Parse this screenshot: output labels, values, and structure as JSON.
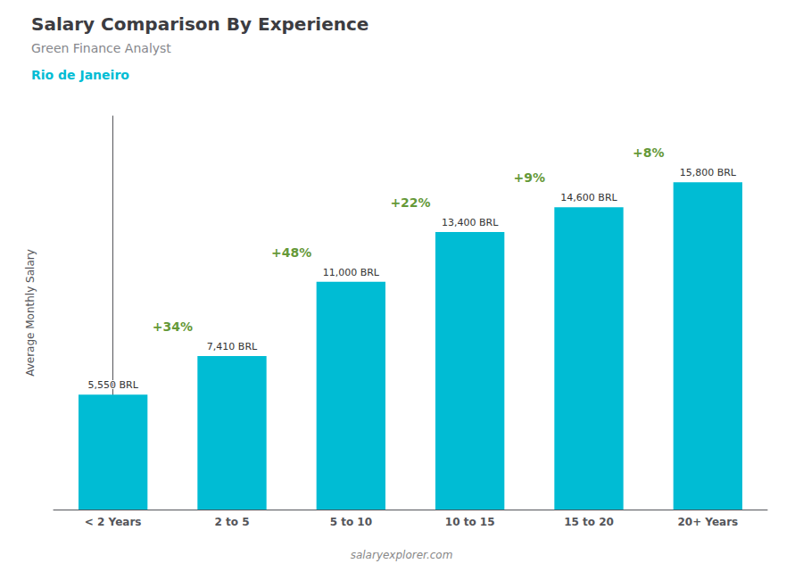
{
  "chart_data": {
    "type": "bar",
    "title": "Salary Comparison By Experience",
    "subtitle": "Green Finance Analyst",
    "city": "Rio de Janeiro",
    "categories": [
      "< 2 Years",
      "2 to 5",
      "5 to 10",
      "10 to 15",
      "15 to 20",
      "20+ Years"
    ],
    "values": [
      5550,
      7410,
      11000,
      13400,
      14600,
      15800
    ],
    "value_labels": [
      "5,550 BRL",
      "7,410 BRL",
      "11,000 BRL",
      "13,400 BRL",
      "14,600 BRL",
      "15,800 BRL"
    ],
    "data_labels": true,
    "change_labels": [
      "+34%",
      "+48%",
      "+22%",
      "+9%",
      "+8%"
    ],
    "color": "#00bcd4",
    "ylabel": "Average Monthly Salary",
    "ylim": [
      0,
      19000
    ],
    "grid": false,
    "tick_labels": "x",
    "watermark": "salaryexplorer.com"
  }
}
